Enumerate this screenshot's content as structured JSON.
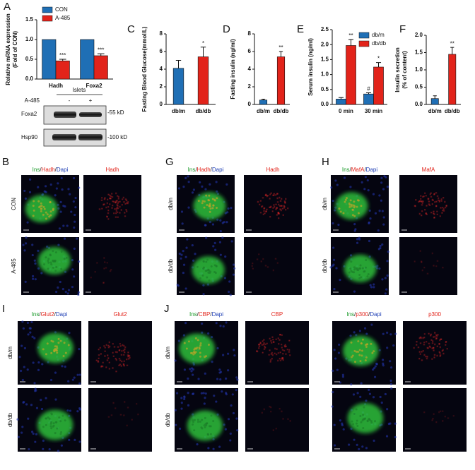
{
  "chart_data": [
    {
      "type": "bar",
      "panel": "A",
      "ylabel": [
        "Relative mRNA expression",
        "(Fold of CON)"
      ],
      "categories": [
        "Hadh",
        "Foxa2"
      ],
      "series": [
        {
          "name": "CON",
          "color": "#1f6fb5",
          "values": [
            1,
            1
          ],
          "errors": [
            0,
            0
          ],
          "significance": [
            null,
            null
          ]
        },
        {
          "name": "A-485",
          "color": "#e2231a",
          "values": [
            0.46,
            0.59
          ],
          "errors": [
            0.04,
            0.05
          ],
          "significance": [
            "***",
            "***"
          ]
        }
      ],
      "ylim": [
        0,
        1.5
      ],
      "yticks": [
        {
          "value": 0,
          "label": "0.0"
        },
        0.5,
        {
          "value": 1,
          "label": "1.0"
        },
        1.5
      ],
      "legend": "top"
    },
    {
      "type": "bar",
      "panel": "C",
      "ylabel": [
        "Fasting Blood Glucose(mmol/L)"
      ],
      "categories": [
        "db/m",
        "db/db"
      ],
      "values": [
        4.1,
        5.4
      ],
      "errors": [
        0.9,
        1.1
      ],
      "significance": [
        null,
        "*"
      ],
      "colors": [
        "#1f6fb5",
        "#e2231a"
      ],
      "ylim": [
        0,
        8
      ],
      "yticks": [
        0,
        2,
        4,
        6,
        8
      ]
    },
    {
      "type": "bar",
      "panel": "D",
      "ylabel": [
        "Fasting insulin (ng/ml)"
      ],
      "categories": [
        "db/m",
        "db/db"
      ],
      "values": [
        0.5,
        5.4
      ],
      "errors": [
        0.1,
        0.6
      ],
      "significance": [
        null,
        "**"
      ],
      "colors": [
        "#1f6fb5",
        "#e2231a"
      ],
      "ylim": [
        0,
        8
      ],
      "yticks": [
        0,
        2,
        4,
        6,
        8
      ]
    },
    {
      "type": "bar",
      "panel": "E",
      "ylabel": [
        "Serum insulin (ng/ml)"
      ],
      "categories": [
        "0 min",
        "30 min"
      ],
      "series": [
        {
          "name": "db/m",
          "color": "#1f6fb5",
          "values": [
            0.18,
            0.35
          ],
          "errors": [
            0.05,
            0.04
          ],
          "significance": [
            null,
            "#"
          ]
        },
        {
          "name": "db/db",
          "color": "#e2231a",
          "values": [
            1.97,
            1.25
          ],
          "errors": [
            0.2,
            0.15
          ],
          "significance": [
            "**",
            "*"
          ]
        }
      ],
      "ylim": [
        0,
        2.5
      ],
      "yticks": [
        {
          "value": 0,
          "label": "0.0"
        },
        0.5,
        {
          "value": 1,
          "label": "1.0"
        },
        1.5,
        {
          "value": 2,
          "label": "2.0"
        },
        2.5
      ],
      "legend": "upper right"
    },
    {
      "type": "bar",
      "panel": "F",
      "ylabel": [
        "Insulin secretion",
        "(% of content)"
      ],
      "categories": [
        "db/m",
        "db/db"
      ],
      "values": [
        0.17,
        1.45
      ],
      "errors": [
        0.08,
        0.2
      ],
      "significance": [
        null,
        "**"
      ],
      "colors": [
        "#1f6fb5",
        "#e2231a"
      ],
      "ylim": [
        0,
        2
      ],
      "yticks": [
        {
          "value": 0,
          "label": "0.0"
        },
        0.5,
        {
          "value": 1,
          "label": "1.0"
        },
        1.5,
        {
          "value": 2,
          "label": "2.0"
        }
      ]
    }
  ],
  "blot": {
    "title": "Islets",
    "treatment": "A-485",
    "lanes": [
      "-",
      "+"
    ],
    "proteins": [
      "Foxa2",
      "Hsp90"
    ],
    "sizes": [
      "-55 kD",
      "-100 kD"
    ]
  },
  "image_panels": [
    {
      "panel": "B",
      "channels": [
        [
          "Ins",
          "/",
          "Hadh",
          "/",
          "Dapi"
        ],
        "Hadh"
      ],
      "rows": [
        "CON",
        "A-485"
      ]
    },
    {
      "panel": "G",
      "channels": [
        [
          "Ins",
          "/",
          "Hadh",
          "/",
          "Dapi"
        ],
        "Hadh"
      ],
      "rows": [
        "db/m",
        "db/db"
      ]
    },
    {
      "panel": "H",
      "channels": [
        [
          "Ins",
          "/",
          "MafA",
          "/",
          "Dapi"
        ],
        "MafA"
      ],
      "rows": [
        "db/m",
        "db/db"
      ]
    },
    {
      "panel": "I",
      "channels": [
        [
          "Ins",
          "/",
          "Glut2",
          "/",
          "Dapi"
        ],
        "Glut2"
      ],
      "rows": [
        "db/m",
        "db/db"
      ]
    },
    {
      "panel": "J",
      "channels": [
        [
          "Ins",
          "/",
          "CBP",
          "/",
          "Dapi"
        ],
        "CBP",
        [
          "Ins",
          "/",
          "p300",
          "/",
          "Dapi"
        ],
        "p300"
      ],
      "rows": [
        "db/m",
        "db/db"
      ]
    }
  ]
}
